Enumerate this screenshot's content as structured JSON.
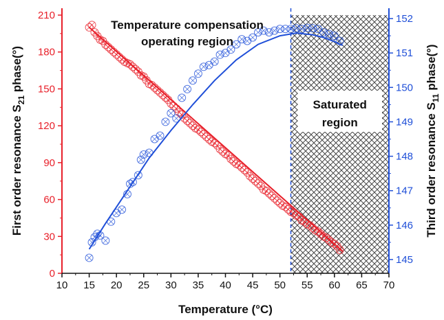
{
  "chart_data": {
    "type": "scatter",
    "title": "",
    "xlabel": "Temperature (°C)",
    "xlim": [
      10,
      70
    ],
    "x_ticks": [
      "10",
      "15",
      "20",
      "25",
      "30",
      "35",
      "40",
      "45",
      "50",
      "55",
      "60",
      "65",
      "70"
    ],
    "y_left": {
      "label_pre": "First order resonance S",
      "label_sub": "21",
      "label_post": " phase(°)",
      "lim": [
        0,
        210
      ],
      "ticks": [
        "0",
        "30",
        "60",
        "90",
        "120",
        "150",
        "180",
        "210"
      ],
      "color": "#e8202a"
    },
    "y_right": {
      "label_pre": "Third order resonance S",
      "label_sub": "11",
      "label_post": " phase(°)",
      "lim": [
        144.6,
        152.3
      ],
      "ticks": [
        "145",
        "146",
        "147",
        "148",
        "149",
        "150",
        "151",
        "152"
      ],
      "color": "#1f4fd8"
    },
    "series": [
      {
        "axis": "left",
        "color": "#e8202a",
        "x": [
          15,
          15.5,
          16,
          16.5,
          17,
          17.5,
          18,
          18.5,
          19,
          19.5,
          20,
          20.5,
          21,
          21.5,
          22,
          22.5,
          23,
          23.5,
          24,
          24.5,
          25,
          25.5,
          26,
          26.5,
          27,
          27.5,
          28,
          28.5,
          29,
          29.5,
          30,
          30.5,
          31,
          31.5,
          32,
          32.5,
          33,
          33.5,
          34,
          34.5,
          35,
          35.5,
          36,
          36.5,
          37,
          37.5,
          38,
          38.5,
          39,
          39.5,
          40,
          40.5,
          41,
          41.5,
          42,
          42.5,
          43,
          43.5,
          44,
          44.5,
          45,
          45.5,
          46,
          46.5,
          47,
          47.5,
          48,
          48.5,
          49,
          49.5,
          50,
          50.5,
          51,
          51.5,
          52,
          52.5,
          53,
          53.5,
          54,
          54.5,
          55,
          55.5,
          56,
          56.5,
          57,
          57.5,
          58,
          58.5,
          59,
          59.5,
          60,
          60.5,
          61
        ],
        "y": [
          200,
          202,
          196,
          193,
          190,
          189,
          186,
          184,
          182,
          180,
          178,
          176,
          174,
          172,
          171,
          170,
          168,
          166,
          164,
          161,
          160,
          157,
          154,
          153,
          151,
          149,
          147,
          145,
          143,
          141,
          138,
          136,
          134,
          131,
          129,
          126,
          124,
          122,
          120,
          118,
          117,
          115,
          113,
          111,
          109,
          107,
          106,
          104,
          101,
          99,
          97,
          96,
          93,
          91,
          89,
          88,
          86,
          84,
          82,
          79,
          77,
          75,
          73,
          71,
          68,
          67,
          65,
          63,
          61,
          59,
          57,
          55,
          54,
          52,
          50,
          49,
          47,
          46,
          43,
          42,
          40,
          39,
          37,
          35,
          34,
          32,
          30,
          29,
          27,
          25,
          24,
          22,
          19
        ],
        "fit": [
          [
            15,
            200
          ],
          [
            61.5,
            18
          ]
        ]
      },
      {
        "axis": "right",
        "color": "#1f4fd8",
        "x": [
          15,
          15.5,
          16,
          16.5,
          17,
          18,
          19,
          20,
          21,
          22,
          22.5,
          23,
          24,
          24.5,
          25,
          26,
          27,
          28,
          29,
          30,
          31,
          32,
          33,
          34,
          35,
          36,
          37,
          38,
          39,
          40,
          41,
          42,
          43,
          44,
          45,
          46,
          47,
          48,
          49,
          50,
          51,
          52,
          53,
          54,
          55,
          56,
          57,
          58,
          59,
          60,
          61
        ],
        "y": [
          145.05,
          145.5,
          145.65,
          145.75,
          145.7,
          145.55,
          146.1,
          146.35,
          146.45,
          146.9,
          147.2,
          147.25,
          147.45,
          147.9,
          148.05,
          148.1,
          148.5,
          148.6,
          149.0,
          149.25,
          149.1,
          149.7,
          149.95,
          150.2,
          150.4,
          150.6,
          150.65,
          150.75,
          150.95,
          151.0,
          151.1,
          151.25,
          151.4,
          151.35,
          151.45,
          151.6,
          151.65,
          151.6,
          151.65,
          151.7,
          151.7,
          151.7,
          151.72,
          151.7,
          151.73,
          151.72,
          151.7,
          151.6,
          151.55,
          151.5,
          151.35
        ],
        "fit": [
          [
            15,
            145.3
          ],
          [
            18,
            146.05
          ],
          [
            22,
            147.0
          ],
          [
            26,
            147.95
          ],
          [
            30,
            148.75
          ],
          [
            34,
            149.5
          ],
          [
            38,
            150.2
          ],
          [
            42,
            150.8
          ],
          [
            46,
            151.25
          ],
          [
            50,
            151.5
          ],
          [
            53,
            151.58
          ],
          [
            56,
            151.53
          ],
          [
            58,
            151.45
          ],
          [
            60,
            151.33
          ],
          [
            61.5,
            151.22
          ]
        ]
      }
    ],
    "saturated_region": {
      "x_start": 52,
      "x_end": 70
    },
    "annotations": {
      "compensation_line1": "Temperature compensation",
      "compensation_line2": "operating region",
      "saturated_line1": "Saturated",
      "saturated_line2": "region"
    },
    "grid": false
  }
}
